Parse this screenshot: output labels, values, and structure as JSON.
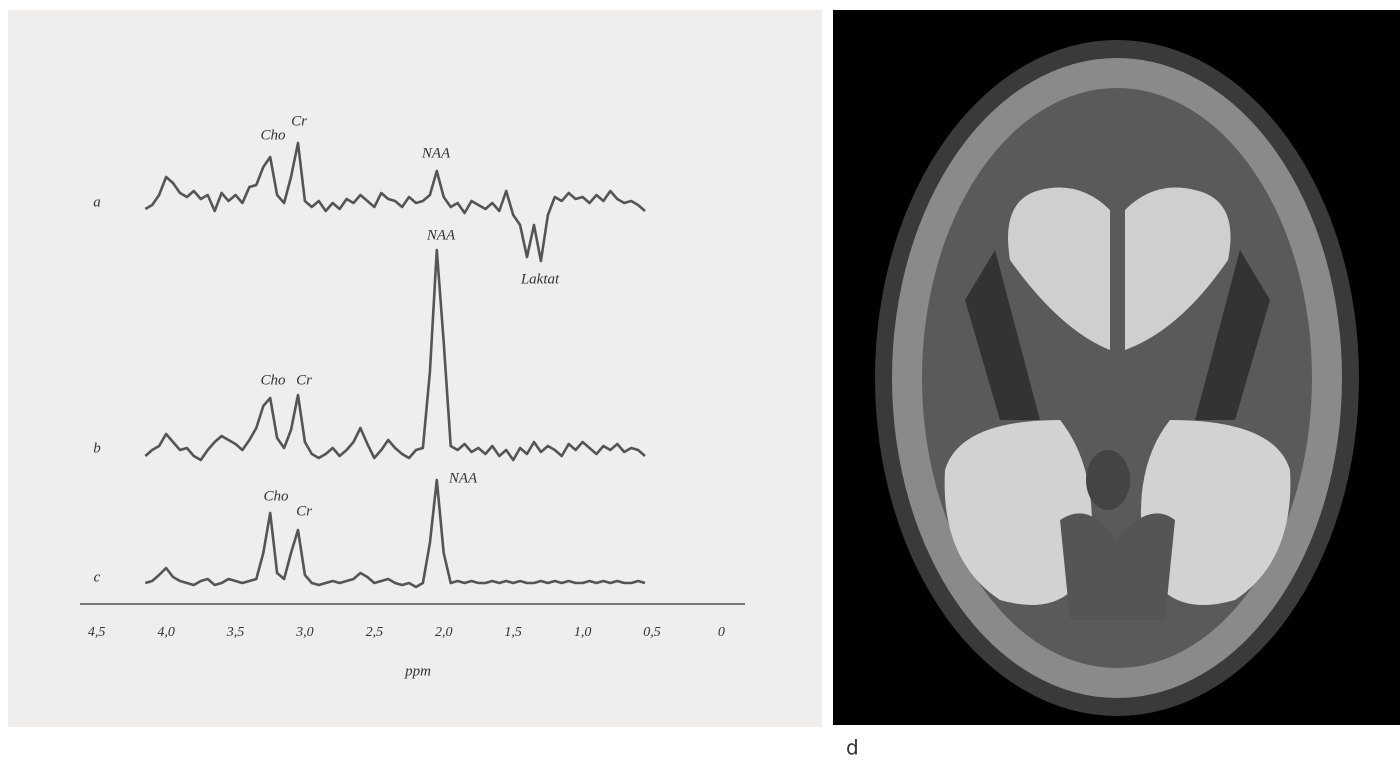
{
  "chart_data": {
    "type": "line",
    "x_label": "ppm",
    "xlim": [
      4.62,
      -0.17
    ],
    "xticks": [
      {
        "value": 4.5,
        "label": "4,5"
      },
      {
        "value": 4.0,
        "label": "4,0"
      },
      {
        "value": 3.5,
        "label": "3,5"
      },
      {
        "value": 3.0,
        "label": "3,0"
      },
      {
        "value": 2.5,
        "label": "2,5"
      },
      {
        "value": 2.0,
        "label": "2,0"
      },
      {
        "value": 1.5,
        "label": "1,5"
      },
      {
        "value": 1.0,
        "label": "1,0"
      },
      {
        "value": 0.5,
        "label": "0,5"
      },
      0
    ],
    "x": [
      4.15,
      4.1,
      4.05,
      4.0,
      3.95,
      3.9,
      3.85,
      3.8,
      3.75,
      3.7,
      3.65,
      3.6,
      3.55,
      3.5,
      3.45,
      3.4,
      3.35,
      3.3,
      3.25,
      3.2,
      3.15,
      3.1,
      3.05,
      3.0,
      2.95,
      2.9,
      2.85,
      2.8,
      2.75,
      2.7,
      2.65,
      2.6,
      2.55,
      2.5,
      2.45,
      2.4,
      2.35,
      2.3,
      2.25,
      2.2,
      2.15,
      2.1,
      2.05,
      2.0,
      1.95,
      1.9,
      1.85,
      1.8,
      1.75,
      1.7,
      1.65,
      1.6,
      1.55,
      1.5,
      1.45,
      1.4,
      1.35,
      1.3,
      1.25,
      1.2,
      1.15,
      1.1,
      1.05,
      1.0,
      0.95,
      0.9,
      0.85,
      0.8,
      0.75,
      0.7,
      0.65,
      0.6,
      0.55
    ],
    "series": [
      {
        "name": "a",
        "color": "#555555",
        "peak_labels": [
          "Cho",
          "Cr",
          "NAA",
          "Laktat"
        ],
        "values": [
          -4,
          0,
          10,
          28,
          22,
          12,
          8,
          14,
          6,
          10,
          -6,
          12,
          4,
          10,
          2,
          18,
          20,
          38,
          48,
          10,
          2,
          28,
          62,
          4,
          -2,
          4,
          -6,
          2,
          -4,
          6,
          2,
          10,
          4,
          -2,
          12,
          6,
          4,
          -2,
          8,
          2,
          4,
          10,
          34,
          8,
          -2,
          2,
          -8,
          4,
          0,
          -4,
          2,
          -6,
          14,
          -10,
          -20,
          -52,
          -20,
          -56,
          -10,
          8,
          4,
          12,
          6,
          8,
          2,
          10,
          4,
          14,
          6,
          2,
          4,
          0,
          -6
        ]
      },
      {
        "name": "b",
        "color": "#555555",
        "peak_labels": [
          "Cho",
          "Cr",
          "NAA"
        ],
        "values": [
          -4,
          2,
          6,
          18,
          10,
          2,
          4,
          -4,
          -8,
          2,
          10,
          16,
          12,
          8,
          2,
          12,
          24,
          46,
          54,
          14,
          4,
          22,
          57,
          10,
          -2,
          -6,
          -2,
          4,
          -4,
          2,
          10,
          24,
          8,
          -6,
          2,
          12,
          4,
          -2,
          -6,
          2,
          4,
          80,
          202,
          110,
          6,
          2,
          8,
          0,
          4,
          -2,
          6,
          -4,
          2,
          -8,
          4,
          -2,
          10,
          0,
          6,
          2,
          -4,
          8,
          2,
          10,
          4,
          -2,
          6,
          2,
          8,
          0,
          4,
          2,
          -4
        ]
      },
      {
        "name": "c",
        "color": "#555555",
        "peak_labels": [
          "Cho",
          "Cr",
          "NAA"
        ],
        "values": [
          0,
          2,
          8,
          15,
          6,
          2,
          0,
          -2,
          2,
          4,
          -2,
          0,
          4,
          2,
          0,
          2,
          4,
          30,
          70,
          10,
          4,
          30,
          53,
          8,
          0,
          -2,
          0,
          2,
          0,
          2,
          4,
          10,
          6,
          0,
          2,
          4,
          0,
          -2,
          0,
          -4,
          0,
          40,
          103,
          30,
          0,
          2,
          0,
          2,
          0,
          0,
          2,
          0,
          2,
          0,
          2,
          0,
          0,
          2,
          0,
          2,
          0,
          2,
          0,
          0,
          2,
          0,
          2,
          0,
          2,
          0,
          0,
          2,
          0
        ]
      }
    ],
    "panel_label": "d"
  }
}
